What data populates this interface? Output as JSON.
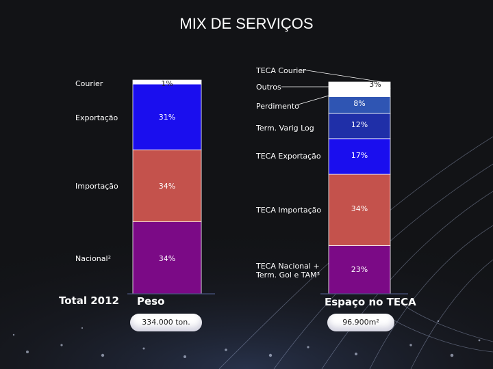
{
  "slide": {
    "title": "MIX DE SERVIÇOS"
  },
  "left_panel": {
    "label": "Total 2012",
    "heading": "Peso",
    "total_value": "334.000 ton."
  },
  "right_panel": {
    "heading": "Espaço no TECA",
    "total_value": "96.900m²"
  },
  "chart_data": [
    {
      "type": "bar",
      "stacked": true,
      "unit": "%",
      "categories": [
        "Peso"
      ],
      "series": [
        {
          "name": "Nacional²",
          "values": [
            34
          ],
          "label": "34%",
          "color": "#7b0a86"
        },
        {
          "name": "Importação",
          "values": [
            34
          ],
          "label": "34%",
          "color": "#c4524c"
        },
        {
          "name": "Exportação",
          "values": [
            31
          ],
          "label": "31%",
          "color": "#1a0eee"
        },
        {
          "name": "Courier",
          "values": [
            1
          ],
          "label": "1%",
          "color": "#ffffff"
        }
      ]
    },
    {
      "type": "bar",
      "stacked": true,
      "unit": "%",
      "categories": [
        "Espaço no TECA"
      ],
      "series": [
        {
          "name": "TECA Nacional + Term. Gol e TAM³",
          "values": [
            23
          ],
          "label": "23%",
          "color": "#7b0a86"
        },
        {
          "name": "TECA Importação",
          "values": [
            34
          ],
          "label": "34%",
          "color": "#c4524c"
        },
        {
          "name": "TECA Exportação",
          "values": [
            17
          ],
          "label": "17%",
          "color": "#1a0eee"
        },
        {
          "name": "Term. Varig Log",
          "values": [
            12
          ],
          "label": "12%",
          "color": "#1f2fa8"
        },
        {
          "name": "Perdimento",
          "values": [
            8
          ],
          "label": "8%",
          "color": "#2f55b3"
        },
        {
          "name": "Outros",
          "values": [
            4
          ],
          "label": "4%",
          "color": "#ffffff"
        },
        {
          "name": "TECA Courier",
          "values": [
            3
          ],
          "label": "3%",
          "color": "#ffffff"
        }
      ]
    }
  ],
  "colors": {
    "background": "#121316",
    "total_line": "#4a5580"
  }
}
